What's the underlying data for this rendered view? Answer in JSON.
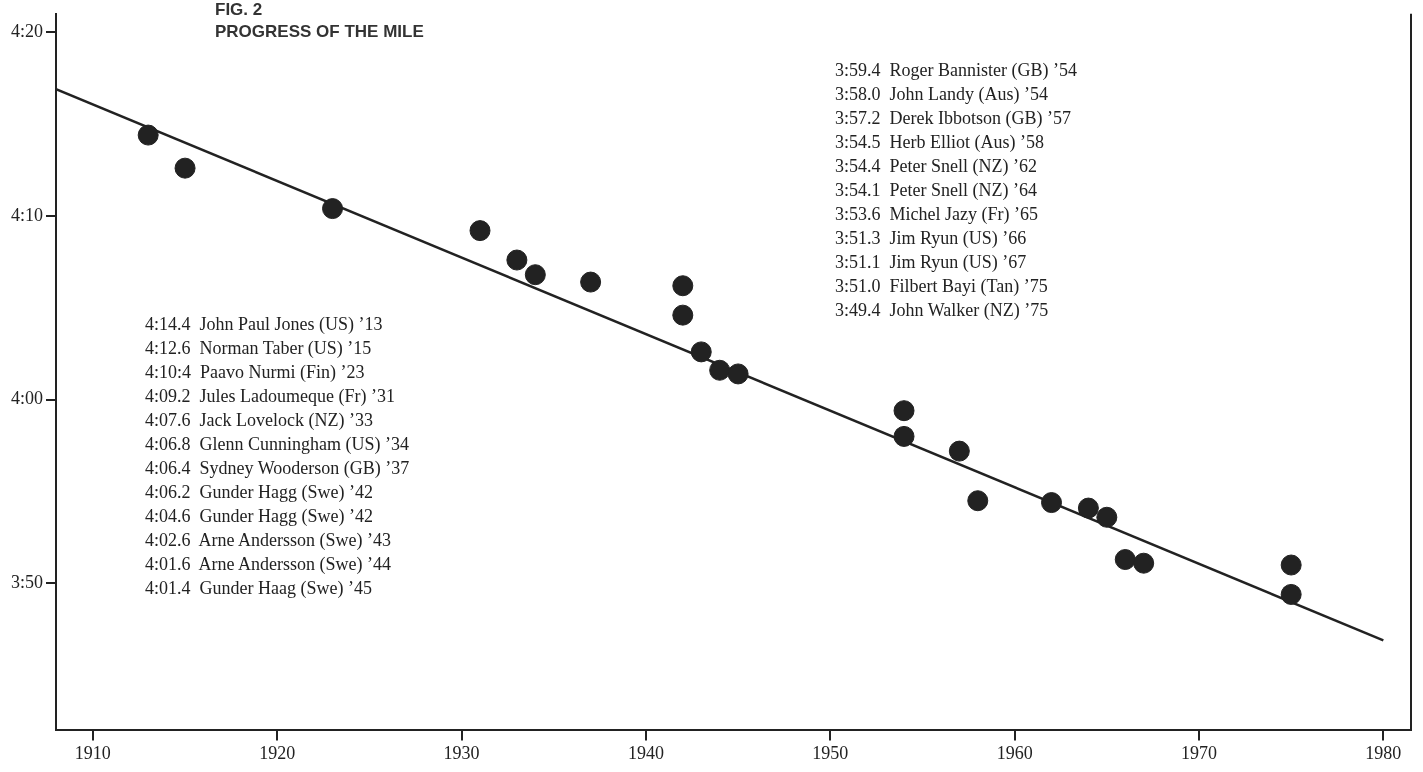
{
  "chart_data": {
    "type": "scatter",
    "title": "FIG. 2",
    "subtitle": "PROGRESS OF THE MILE",
    "x": [
      1913,
      1915,
      1923,
      1931,
      1933,
      1934,
      1937,
      1942,
      1942,
      1943,
      1944,
      1945,
      1954,
      1954,
      1957,
      1958,
      1962,
      1964,
      1965,
      1966,
      1967,
      1975,
      1975
    ],
    "series": [
      {
        "color": "#222222",
        "values": [
          254.4,
          252.6,
          250.4,
          249.2,
          247.6,
          246.8,
          246.4,
          246.2,
          244.6,
          242.6,
          241.6,
          241.4,
          239.4,
          238.0,
          237.2,
          234.5,
          234.4,
          234.1,
          233.6,
          231.3,
          231.1,
          231.0,
          229.4
        ]
      },
      {
        "type": "line",
        "color": "#222222",
        "marker": "none",
        "x": [
          1908,
          1980
        ],
        "values": [
          256.9,
          226.9
        ]
      }
    ],
    "marker": "circle",
    "grid": false,
    "legend": false,
    "xlim": [
      1908,
      1981.5
    ],
    "xticks": [
      1910,
      1920,
      1930,
      1940,
      1950,
      1960,
      1970,
      1980
    ],
    "ylim": [
      222,
      261
    ],
    "yticks": [
      {
        "value": 230,
        "label": "3:50"
      },
      {
        "value": 240,
        "label": "4:00"
      },
      {
        "value": 250,
        "label": "4:10"
      },
      {
        "value": 260,
        "label": "4:20"
      }
    ],
    "annotations": [
      "4:14.4  John Paul Jones (US) ’13\n4:12.6  Norman Taber (US) ’15\n4:10:4  Paavo Nurmi (Fin) ’23\n4:09.2  Jules Ladoumeque (Fr) ’31\n4:07.6  Jack Lovelock (NZ) ’33\n4:06.8  Glenn Cunningham (US) ’34\n4:06.4  Sydney Wooderson (GB) ’37\n4:06.2  Gunder Hagg (Swe) ’42\n4:04.6  Gunder Hagg (Swe) ’42\n4:02.6  Arne Andersson (Swe) ’43\n4:01.6  Arne Andersson (Swe) ’44\n4:01.4  Gunder Haag (Swe) ’45",
      "3:59.4  Roger Bannister (GB) ’54\n3:58.0  John Landy (Aus) ’54\n3:57.2  Derek Ibbotson (GB) ’57\n3:54.5  Herb Elliot (Aus) ’58\n3:54.4  Peter Snell (NZ) ’62\n3:54.1  Peter Snell (NZ) ’64\n3:53.6  Michel Jazy (Fr) ’65\n3:51.3  Jim Ryun (US) ’66\n3:51.1  Jim Ryun (US) ’67\n3:51.0  Filbert Bayi (Tan) ’75\n3:49.4  John Walker (NZ) ’75"
    ]
  }
}
